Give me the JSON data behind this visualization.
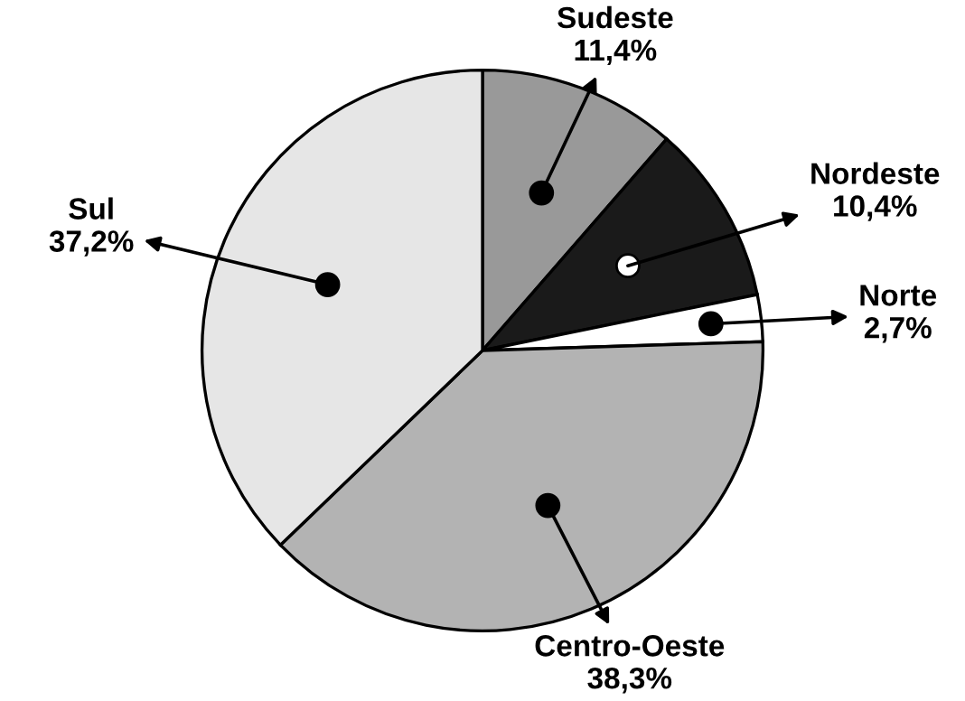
{
  "chart_data": {
    "type": "pie",
    "categories": [
      "Sudeste",
      "Nordeste",
      "Norte",
      "Centro-Oeste",
      "Sul"
    ],
    "values": [
      11.4,
      10.4,
      2.7,
      38.3,
      37.2
    ],
    "value_labels": [
      "11,4%",
      "10,4%",
      "2,7%",
      "38,3%",
      "37,2%"
    ],
    "colors": [
      "#999999",
      "#1a1a1a",
      "#ffffff",
      "#b3b3b3",
      "#e6e6e6"
    ]
  }
}
